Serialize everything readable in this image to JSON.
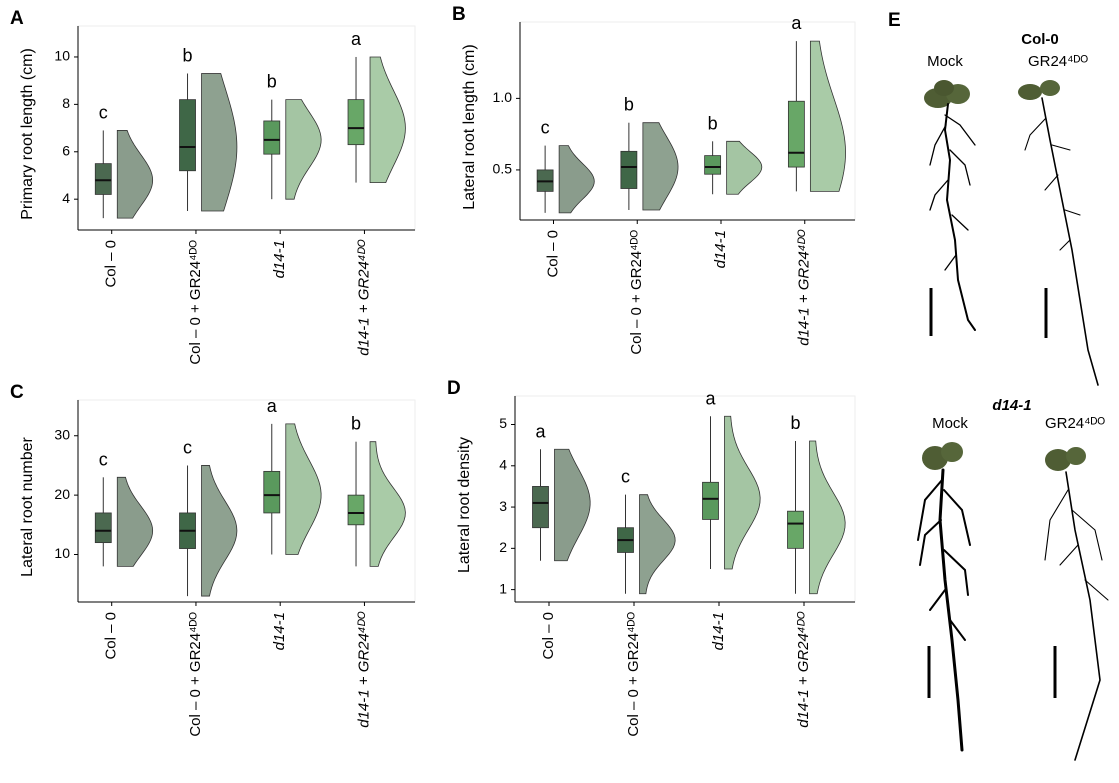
{
  "chart_data": [
    {
      "type": "box",
      "panel": "A",
      "y_label": "Primary root length (cm)",
      "categories": [
        "Col – 0",
        "Col – 0 + GR24⁴ᴰᴼ",
        "d14-1",
        "d14-1 + GR24⁴ᴰᴼ"
      ],
      "boxes": [
        {
          "min": 3.2,
          "q1": 4.2,
          "median": 4.8,
          "q3": 5.5,
          "max": 6.9
        },
        {
          "min": 3.5,
          "q1": 5.2,
          "median": 6.2,
          "q3": 8.2,
          "max": 9.3
        },
        {
          "min": 4.0,
          "q1": 5.9,
          "median": 6.5,
          "q3": 7.3,
          "max": 8.2
        },
        {
          "min": 4.7,
          "q1": 6.3,
          "median": 7.0,
          "q3": 8.2,
          "max": 10.0
        }
      ],
      "letters": [
        "c",
        "b",
        "b",
        "a"
      ],
      "colors": [
        "#4b6950",
        "#3f6747",
        "#5a995d",
        "#68a767"
      ],
      "violin_colors": [
        "#8a9c8c",
        "#8ea190",
        "#a4c5a3",
        "#a9cba7"
      ],
      "ylim": [
        2.7,
        10.8
      ],
      "yticks": [
        4,
        6,
        8,
        10
      ]
    },
    {
      "type": "box",
      "panel": "B",
      "y_label": "Lateral root length (cm)",
      "categories": [
        "Col – 0",
        "Col – 0 + GR24⁴ᴰᴼ",
        "d14-1",
        "d14-1 + GR24⁴ᴰᴼ"
      ],
      "boxes": [
        {
          "min": 0.2,
          "q1": 0.35,
          "median": 0.42,
          "q3": 0.5,
          "max": 0.67
        },
        {
          "min": 0.22,
          "q1": 0.37,
          "median": 0.52,
          "q3": 0.63,
          "max": 0.83
        },
        {
          "min": 0.33,
          "q1": 0.47,
          "median": 0.52,
          "q3": 0.6,
          "max": 0.7
        },
        {
          "min": 0.35,
          "q1": 0.52,
          "median": 0.62,
          "q3": 0.98,
          "max": 1.4
        }
      ],
      "letters": [
        "c",
        "b",
        "b",
        "a"
      ],
      "colors": [
        "#4b6950",
        "#3f6747",
        "#5a995d",
        "#68a767"
      ],
      "violin_colors": [
        "#8a9c8c",
        "#8ea190",
        "#a4c5a3",
        "#a9cba7"
      ],
      "ylim": [
        0.15,
        1.45
      ],
      "yticks": [
        0.5,
        {
          "value": 1,
          "label": "1.0"
        }
      ]
    },
    {
      "type": "box",
      "panel": "C",
      "y_label": "Lateral root number",
      "categories": [
        "Col – 0",
        "Col – 0 + GR24⁴ᴰᴼ",
        "d14-1",
        "d14-1 + GR24⁴ᴰᴼ"
      ],
      "boxes": [
        {
          "min": 8,
          "q1": 12,
          "median": 14,
          "q3": 17,
          "max": 23
        },
        {
          "min": 3,
          "q1": 11,
          "median": 14,
          "q3": 17,
          "max": 25
        },
        {
          "min": 10,
          "q1": 17,
          "median": 20,
          "q3": 24,
          "max": 32
        },
        {
          "min": 8,
          "q1": 15,
          "median": 17,
          "q3": 20,
          "max": 29
        }
      ],
      "letters": [
        "c",
        "c",
        "a",
        "b"
      ],
      "colors": [
        "#4b6950",
        "#3f6747",
        "#5a995d",
        "#68a767"
      ],
      "violin_colors": [
        "#8a9c8c",
        "#8ea190",
        "#a4c5a3",
        "#a9cba7"
      ],
      "ylim": [
        2,
        34
      ],
      "yticks": [
        10,
        20,
        30
      ]
    },
    {
      "type": "box",
      "panel": "D",
      "y_label": "Lateral root density",
      "categories": [
        "Col – 0",
        "Col – 0 + GR24⁴ᴰᴼ",
        "d14-1",
        "d14-1 + GR24⁴ᴰᴼ"
      ],
      "boxes": [
        {
          "min": 1.7,
          "q1": 2.5,
          "median": 3.1,
          "q3": 3.5,
          "max": 4.4
        },
        {
          "min": 0.9,
          "q1": 1.9,
          "median": 2.2,
          "q3": 2.5,
          "max": 3.3
        },
        {
          "min": 1.5,
          "q1": 2.7,
          "median": 3.2,
          "q3": 3.6,
          "max": 5.2
        },
        {
          "min": 0.9,
          "q1": 2.0,
          "median": 2.6,
          "q3": 2.9,
          "max": 4.6
        }
      ],
      "letters": [
        "a",
        "c",
        "a",
        "b"
      ],
      "colors": [
        "#4b6950",
        "#3f6747",
        "#5a995d",
        "#68a767"
      ],
      "violin_colors": [
        "#8a9c8c",
        "#8ea190",
        "#a4c5a3",
        "#a9cba7"
      ],
      "ylim": [
        0.7,
        5.4
      ],
      "yticks": [
        1,
        2,
        3,
        4,
        5
      ]
    }
  ],
  "panel_e": {
    "letter": "E",
    "rows": [
      {
        "genotype": "Col-0",
        "treatments": [
          "Mock",
          "GR24⁴ᴰᴼ"
        ]
      },
      {
        "genotype": "d14-1",
        "treatments": [
          "Mock",
          "GR24⁴ᴰᴼ"
        ]
      }
    ]
  }
}
